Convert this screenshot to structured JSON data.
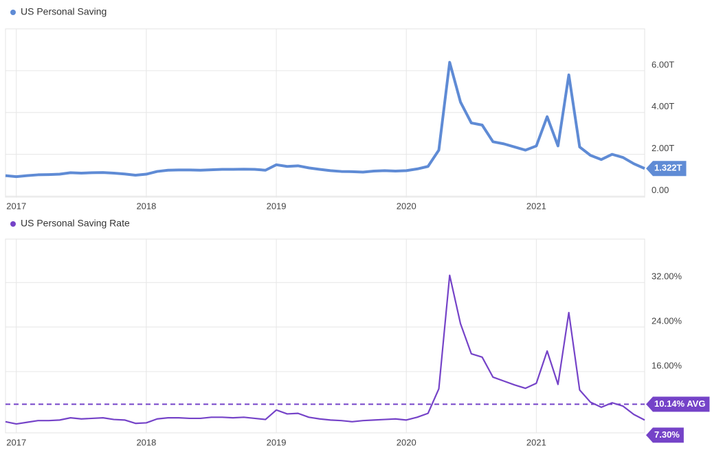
{
  "chart_data": [
    {
      "type": "line",
      "categories": [
        null,
        "2017",
        null,
        null,
        null,
        null,
        null,
        null,
        null,
        null,
        null,
        null,
        null,
        "2018",
        null,
        null,
        null,
        null,
        null,
        null,
        null,
        null,
        null,
        null,
        null,
        "2019",
        null,
        null,
        null,
        null,
        null,
        null,
        null,
        null,
        null,
        null,
        null,
        "2020",
        null,
        null,
        null,
        null,
        null,
        null,
        null,
        null,
        null,
        null,
        null,
        "2021",
        null,
        null,
        null,
        null,
        null,
        null,
        null,
        null,
        null,
        null
      ],
      "series": [
        {
          "name": "US Personal Saving",
          "color": "#5f8bd5",
          "values": [
            0.98,
            0.93,
            0.98,
            1.02,
            1.03,
            1.05,
            1.12,
            1.1,
            1.12,
            1.13,
            1.1,
            1.06,
            1.0,
            1.05,
            1.18,
            1.24,
            1.25,
            1.25,
            1.24,
            1.26,
            1.28,
            1.28,
            1.29,
            1.28,
            1.24,
            1.5,
            1.42,
            1.45,
            1.35,
            1.28,
            1.22,
            1.18,
            1.17,
            1.15,
            1.2,
            1.22,
            1.2,
            1.22,
            1.3,
            1.42,
            2.2,
            6.4,
            4.5,
            3.5,
            3.4,
            2.6,
            2.5,
            2.35,
            2.2,
            2.4,
            3.8,
            2.4,
            5.8,
            2.35,
            1.95,
            1.75,
            2.0,
            1.85,
            1.55,
            1.322
          ],
          "value_labels": [
            null,
            null,
            null,
            null,
            null,
            null,
            null,
            null,
            null,
            null,
            null,
            null,
            null,
            null,
            null,
            null,
            null,
            null,
            null,
            null,
            null,
            null,
            null,
            null,
            null,
            null,
            null,
            null,
            null,
            null,
            null,
            null,
            null,
            null,
            null,
            null,
            null,
            null,
            null,
            null,
            null,
            null,
            null,
            null,
            null,
            null,
            null,
            null,
            null,
            null,
            null,
            null,
            null,
            null,
            null,
            null,
            null,
            null,
            null,
            "1.322T"
          ]
        }
      ],
      "ylim": [
        -0.05,
        8.0
      ],
      "yticks": [
        {
          "value": 0,
          "label": "0.00"
        },
        {
          "value": 2,
          "label": "2.00T"
        },
        {
          "value": 4,
          "label": "4.00T"
        },
        {
          "value": 6,
          "label": "6.00T"
        }
      ],
      "grid": true
    },
    {
      "type": "line",
      "categories": [
        null,
        "2017",
        null,
        null,
        null,
        null,
        null,
        null,
        null,
        null,
        null,
        null,
        null,
        "2018",
        null,
        null,
        null,
        null,
        null,
        null,
        null,
        null,
        null,
        null,
        null,
        "2019",
        null,
        null,
        null,
        null,
        null,
        null,
        null,
        null,
        null,
        null,
        null,
        "2020",
        null,
        null,
        null,
        null,
        null,
        null,
        null,
        null,
        null,
        null,
        null,
        "2021",
        null,
        null,
        null,
        null,
        null,
        null,
        null,
        null,
        null,
        null
      ],
      "series": [
        {
          "name": "US Personal Saving Rate",
          "color": "#7543c8",
          "values": [
            7.0,
            6.6,
            6.9,
            7.2,
            7.2,
            7.3,
            7.7,
            7.5,
            7.6,
            7.7,
            7.4,
            7.3,
            6.7,
            6.8,
            7.5,
            7.7,
            7.7,
            7.6,
            7.6,
            7.8,
            7.8,
            7.7,
            7.8,
            7.6,
            7.4,
            9.1,
            8.4,
            8.5,
            7.8,
            7.5,
            7.3,
            7.2,
            7.0,
            7.2,
            7.3,
            7.4,
            7.5,
            7.3,
            7.8,
            8.5,
            12.9,
            33.3,
            24.6,
            19.2,
            18.6,
            15.0,
            14.3,
            13.6,
            13.0,
            13.9,
            19.7,
            13.7,
            26.6,
            12.7,
            10.5,
            9.6,
            10.4,
            9.8,
            8.3,
            7.3
          ],
          "value_labels": [
            null,
            null,
            null,
            null,
            null,
            null,
            null,
            null,
            null,
            null,
            null,
            null,
            null,
            null,
            null,
            null,
            null,
            null,
            null,
            null,
            null,
            null,
            null,
            null,
            null,
            null,
            null,
            null,
            null,
            null,
            null,
            null,
            null,
            null,
            null,
            null,
            null,
            null,
            null,
            null,
            null,
            null,
            null,
            null,
            null,
            null,
            null,
            null,
            null,
            null,
            null,
            null,
            null,
            null,
            null,
            null,
            null,
            null,
            null,
            "7.30%"
          ]
        }
      ],
      "average": {
        "value": 10.14,
        "label": "10.14% AVG"
      },
      "ylim": [
        5.0,
        39.8
      ],
      "yticks": [
        {
          "value": 16,
          "label": "16.00%"
        },
        {
          "value": 24,
          "label": "24.00%"
        },
        {
          "value": 32,
          "label": "32.00%"
        }
      ],
      "grid": true
    }
  ]
}
